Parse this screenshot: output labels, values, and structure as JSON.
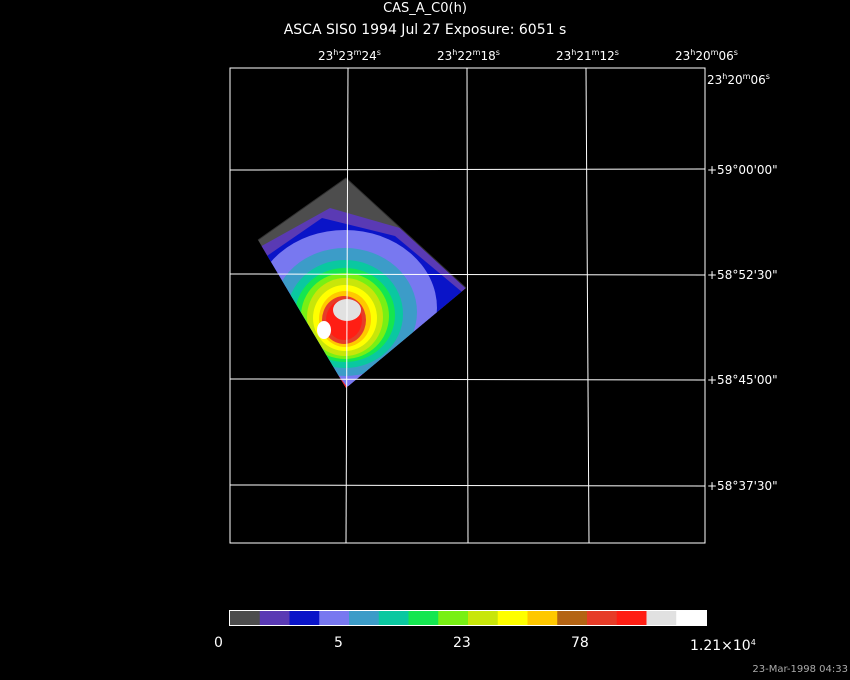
{
  "header": {
    "object_name": "CAS_A_C0(h)",
    "subtitle": "ASCA SIS0   1994 Jul 27    Exposure:  6051 s"
  },
  "ra_axis": {
    "labels": [
      {
        "h": "23",
        "m": "23",
        "s": "24"
      },
      {
        "h": "23",
        "m": "22",
        "s": "18"
      },
      {
        "h": "23",
        "m": "21",
        "s": "12"
      },
      {
        "h": "23",
        "m": "20",
        "s": "06"
      }
    ],
    "corner_label": {
      "h": "23",
      "m": "20",
      "s": "06"
    }
  },
  "dec_axis": {
    "labels": [
      "+59°00'00\"",
      "+58°52'30\"",
      "+58°45'00\"",
      "+58°37'30\""
    ]
  },
  "colorbar": {
    "colors": [
      "#4d4d4d",
      "#5a3ab4",
      "#0a14c8",
      "#7878f0",
      "#3c9cc8",
      "#0ac8a0",
      "#14e650",
      "#78f014",
      "#c8e60a",
      "#ffff00",
      "#ffc800",
      "#b46414",
      "#e63c28",
      "#ff1e14",
      "#e1e1e1",
      "#ffffff"
    ],
    "tick_labels": [
      "0",
      "5",
      "23",
      "78",
      "1.21×10"
    ],
    "tick_exponent": "4"
  },
  "timestamp": "23-Mar-1998 04:33"
}
